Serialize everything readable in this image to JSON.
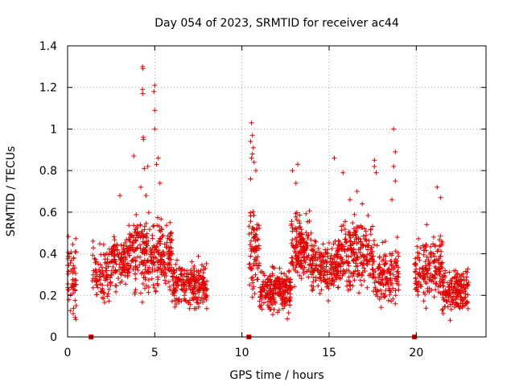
{
  "chart_data": {
    "type": "scatter",
    "title": "Day 054 of 2023, SRMTID for receiver ac44",
    "xlabel": "GPS time / hours",
    "ylabel": "SRMTID / TECUs",
    "xlim": [
      0,
      24
    ],
    "ylim": [
      0,
      1.4
    ],
    "x_ticks": [
      0,
      5,
      10,
      15,
      20
    ],
    "y_ticks": [
      0,
      0.2,
      0.4,
      0.6,
      0.8,
      1,
      1.2,
      1.4
    ],
    "x_tick_labels": [
      "0",
      "5",
      "10",
      "15",
      "20"
    ],
    "y_tick_labels": [
      "0",
      "0.2",
      "0.4",
      "0.6",
      "0.8",
      "1",
      "1.2",
      "1.4"
    ],
    "grid": true,
    "marker": "+",
    "color": "#e00000",
    "series": [
      {
        "name": "SRMTID",
        "segments": [
          {
            "start": 0.0,
            "end": 0.5,
            "base": 0.28,
            "spread": 0.14,
            "count": 55
          },
          {
            "start": 1.4,
            "end": 2.5,
            "base": 0.3,
            "spread": 0.1,
            "count": 90
          },
          {
            "start": 2.5,
            "end": 3.5,
            "base": 0.36,
            "spread": 0.09,
            "count": 110
          },
          {
            "start": 3.5,
            "end": 5.0,
            "base": 0.4,
            "spread": 0.13,
            "count": 180
          },
          {
            "start": 5.0,
            "end": 6.0,
            "base": 0.38,
            "spread": 0.13,
            "count": 120
          },
          {
            "start": 6.0,
            "end": 8.0,
            "base": 0.25,
            "spread": 0.08,
            "count": 220
          },
          {
            "start": 10.4,
            "end": 11.0,
            "base": 0.4,
            "spread": 0.17,
            "count": 80
          },
          {
            "start": 11.0,
            "end": 12.8,
            "base": 0.23,
            "spread": 0.08,
            "count": 230
          },
          {
            "start": 12.8,
            "end": 14.0,
            "base": 0.43,
            "spread": 0.13,
            "count": 160
          },
          {
            "start": 14.0,
            "end": 15.5,
            "base": 0.34,
            "spread": 0.1,
            "count": 170
          },
          {
            "start": 15.5,
            "end": 17.5,
            "base": 0.4,
            "spread": 0.13,
            "count": 230
          },
          {
            "start": 17.5,
            "end": 19.0,
            "base": 0.3,
            "spread": 0.12,
            "count": 150
          },
          {
            "start": 19.9,
            "end": 21.5,
            "base": 0.32,
            "spread": 0.12,
            "count": 170
          },
          {
            "start": 21.5,
            "end": 23.0,
            "base": 0.22,
            "spread": 0.08,
            "count": 180
          }
        ],
        "peaks": [
          [
            4.3,
            1.3
          ],
          [
            4.32,
            1.29
          ],
          [
            4.3,
            1.19
          ],
          [
            4.32,
            1.17
          ],
          [
            4.34,
            0.96
          ],
          [
            4.35,
            0.95
          ],
          [
            4.6,
            0.82
          ],
          [
            4.4,
            0.81
          ],
          [
            5.0,
            1.21
          ],
          [
            4.95,
            1.18
          ],
          [
            5.0,
            1.09
          ],
          [
            5.0,
            1.0
          ],
          [
            5.2,
            0.86
          ],
          [
            5.1,
            0.83
          ],
          [
            3.8,
            0.87
          ],
          [
            5.3,
            0.74
          ],
          [
            3.0,
            0.68
          ],
          [
            10.55,
            1.03
          ],
          [
            10.6,
            0.97
          ],
          [
            10.5,
            0.94
          ],
          [
            10.65,
            0.91
          ],
          [
            10.6,
            0.88
          ],
          [
            10.55,
            0.86
          ],
          [
            10.7,
            0.84
          ],
          [
            10.8,
            0.8
          ],
          [
            10.5,
            0.76
          ],
          [
            12.9,
            0.8
          ],
          [
            13.2,
            0.83
          ],
          [
            13.1,
            0.74
          ],
          [
            15.3,
            0.86
          ],
          [
            15.8,
            0.79
          ],
          [
            16.6,
            0.7
          ],
          [
            17.6,
            0.85
          ],
          [
            17.6,
            0.82
          ],
          [
            17.7,
            0.79
          ],
          [
            18.7,
            1.0
          ],
          [
            18.8,
            0.89
          ],
          [
            18.7,
            0.82
          ],
          [
            18.8,
            0.75
          ],
          [
            18.6,
            0.66
          ],
          [
            21.2,
            0.72
          ],
          [
            21.4,
            0.67
          ],
          [
            20.6,
            0.54
          ],
          [
            21.0,
            0.48
          ],
          [
            4.2,
            0.72
          ],
          [
            4.5,
            0.68
          ],
          [
            16.2,
            0.66
          ],
          [
            16.9,
            0.64
          ]
        ]
      }
    ],
    "gap_markers_x": [
      1.35,
      10.4,
      19.9
    ]
  }
}
